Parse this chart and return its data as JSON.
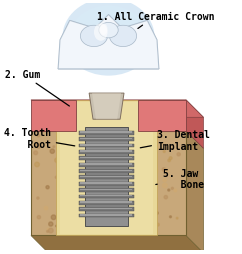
{
  "bg_color": "#ffffff",
  "labels": {
    "1": "1. All Ceramic Crown",
    "2": "2. Gum",
    "3": "3. Dental\nImplant",
    "4": "4. Tooth\n    Root",
    "5": "5. Jaw\n   Bone"
  },
  "font_size": 7.0,
  "font_family": "monospace",
  "font_weight": "bold",
  "jaw_color": "#C8A87A",
  "jaw_side_color": "#A8885A",
  "jaw_bottom_color": "#907040",
  "gum_color": "#E07878",
  "gum_side_color": "#C05858",
  "gum_top_color": "#D06868",
  "root_color": "#E8D898",
  "implant_color": "#888888",
  "thread_color": "#666666",
  "abut_color": "#D8C8A8",
  "crown_halo": "#C8DCF0",
  "crown_body": "#E8F0F8",
  "crown_edge": "#A8B8C8",
  "cusp_color": "#D0E0F0"
}
